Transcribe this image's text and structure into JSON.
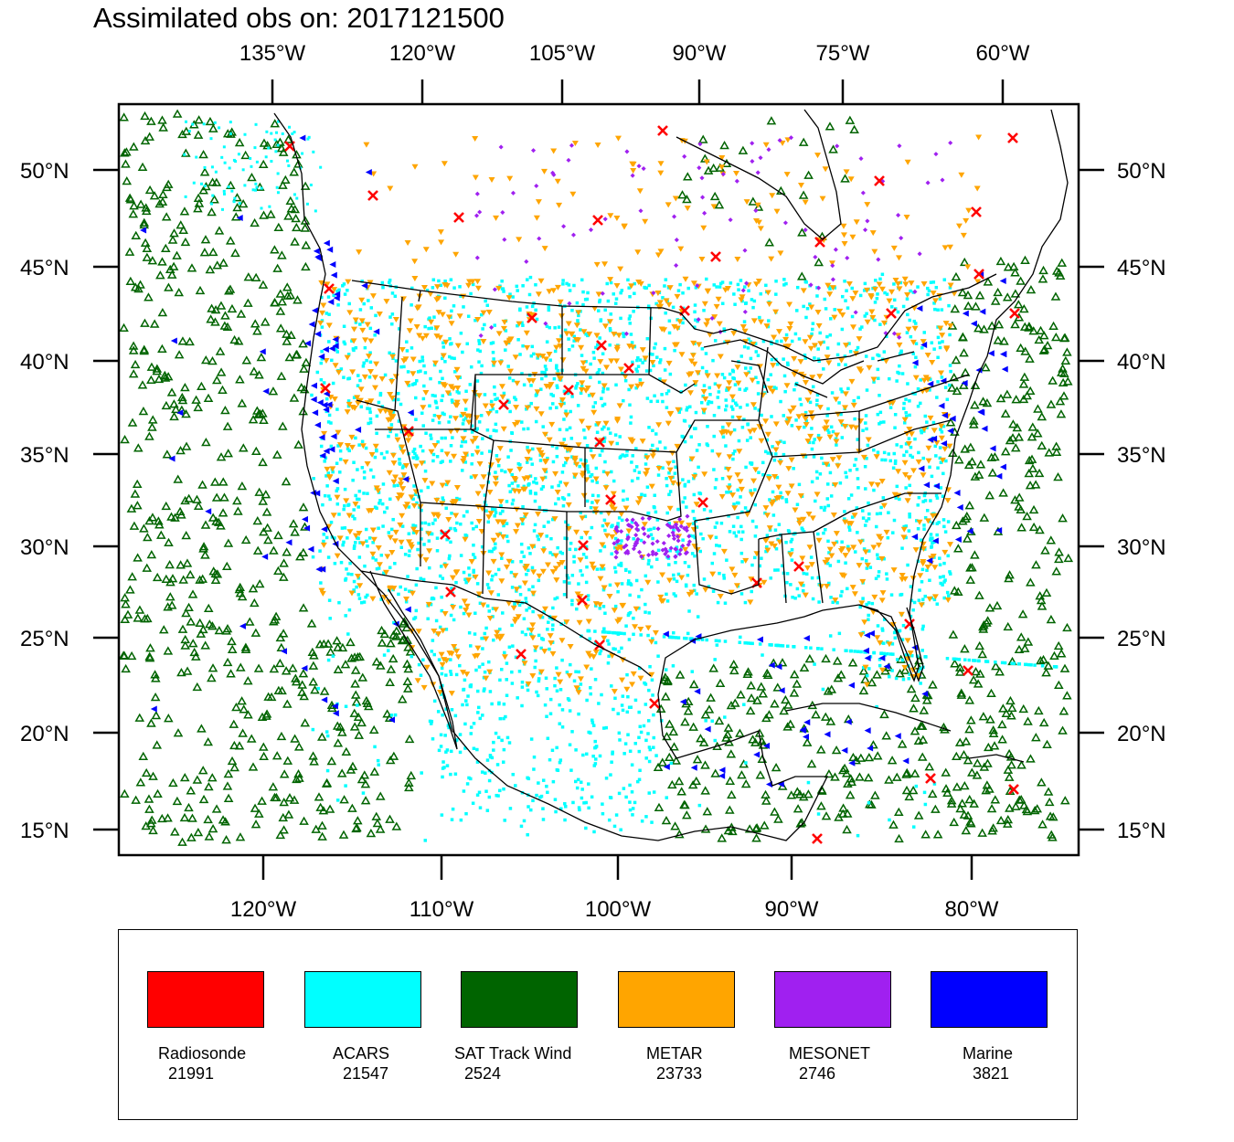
{
  "title": "Assimilated obs on: 2017121500",
  "map": {
    "top_lon_labels": [
      "135°W",
      "120°W",
      "105°W",
      "90°W",
      "75°W",
      "60°W"
    ],
    "bottom_lon_labels": [
      "120°W",
      "110°W",
      "100°W",
      "90°W",
      "80°W"
    ],
    "lat_labels": [
      "50°N",
      "45°N",
      "40°N",
      "35°N",
      "30°N",
      "25°N",
      "20°N",
      "15°N"
    ]
  },
  "legend": [
    {
      "name": "Radiosonde",
      "count": "21991",
      "color": "#ff0000"
    },
    {
      "name": "ACARS",
      "count": "21547",
      "color": "#00ffff"
    },
    {
      "name": "SAT Track Wind",
      "count": "2524",
      "color": "#006400"
    },
    {
      "name": "METAR",
      "count": "23733",
      "color": "#ffa500"
    },
    {
      "name": "MESONET",
      "count": "2746",
      "color": "#a020f0"
    },
    {
      "name": "Marine",
      "count": "3821",
      "color": "#0000ff"
    }
  ]
}
